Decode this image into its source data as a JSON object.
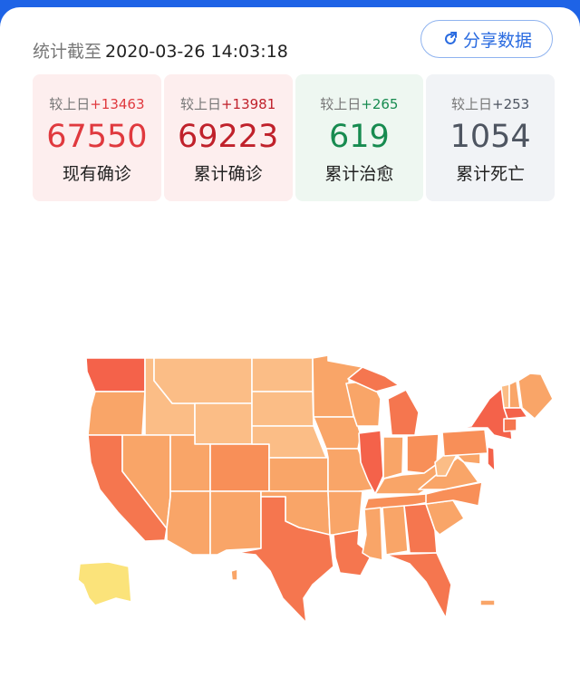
{
  "header": {
    "label": "统计截至",
    "timestamp": "2020-03-26 14:03:18",
    "share_label": "分享数据",
    "share_icon": "share-arrow-icon"
  },
  "stats": [
    {
      "delta_prefix": "较上日",
      "delta": "+13463",
      "value": "67550",
      "label": "现有确诊",
      "color": "#e0393e",
      "delta_color": "#e0393e",
      "bg": "#fdeeee"
    },
    {
      "delta_prefix": "较上日",
      "delta": "+13981",
      "value": "69223",
      "label": "累计确诊",
      "color": "#c0212b",
      "delta_color": "#c0212b",
      "bg": "#fdeeee"
    },
    {
      "delta_prefix": "较上日",
      "delta": "+265",
      "value": "619",
      "label": "累计治愈",
      "color": "#178b50",
      "delta_color": "#178b50",
      "bg": "#eef7f1"
    },
    {
      "delta_prefix": "较上日",
      "delta": "+253",
      "value": "1054",
      "label": "累计死亡",
      "color": "#4e5561",
      "delta_color": "#4e5561",
      "bg": "#f1f3f6"
    }
  ],
  "map": {
    "colors": {
      "high": "#f4624a",
      "mid_high": "#f5764f",
      "mid": "#f88f58",
      "low_mid": "#f9a568",
      "low": "#fbbd86",
      "alaska": "#fbe37a"
    }
  }
}
